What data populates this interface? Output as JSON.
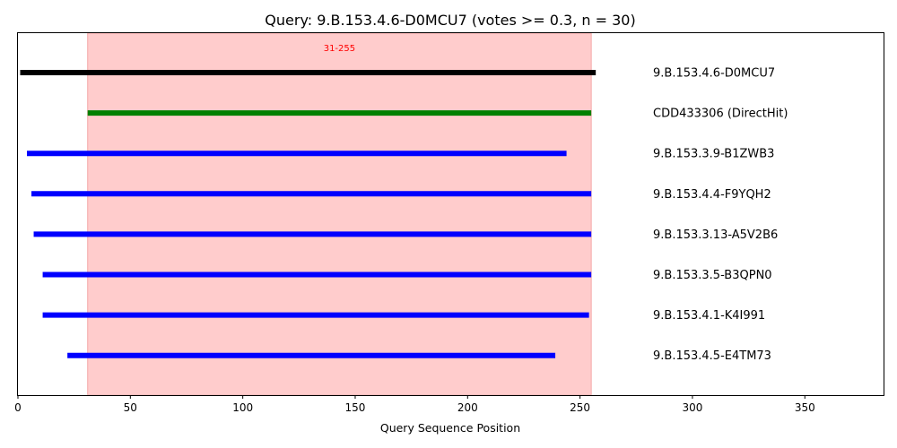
{
  "chart_data": {
    "type": "range-bar",
    "title": "Query: 9.B.153.4.6-D0MCU7 (votes >= 0.3, n = 30)",
    "xlabel": "Query Sequence Position",
    "ylabel": "",
    "xlim": [
      0,
      385
    ],
    "xticks": [
      0,
      50,
      100,
      150,
      200,
      250,
      300,
      350
    ],
    "grid": false,
    "highlight_region": {
      "start": 31,
      "end": 255,
      "label": "31-255",
      "color": "#ffcccc"
    },
    "tracks": [
      {
        "name": "9.B.153.4.6-D0MCU7",
        "start": 1,
        "end": 257,
        "color": "#000000"
      },
      {
        "name": "CDD433306 (DirectHit)",
        "start": 31,
        "end": 255,
        "color": "#008000"
      },
      {
        "name": "9.B.153.3.9-B1ZWB3",
        "start": 4,
        "end": 244,
        "color": "#0000ff"
      },
      {
        "name": "9.B.153.4.4-F9YQH2",
        "start": 6,
        "end": 255,
        "color": "#0000ff"
      },
      {
        "name": "9.B.153.3.13-A5V2B6",
        "start": 7,
        "end": 255,
        "color": "#0000ff"
      },
      {
        "name": "9.B.153.3.5-B3QPN0",
        "start": 11,
        "end": 255,
        "color": "#0000ff"
      },
      {
        "name": "9.B.153.4.1-K4I991",
        "start": 11,
        "end": 254,
        "color": "#0000ff"
      },
      {
        "name": "9.B.153.4.5-E4TM73",
        "start": 22,
        "end": 239,
        "color": "#0000ff"
      }
    ]
  }
}
